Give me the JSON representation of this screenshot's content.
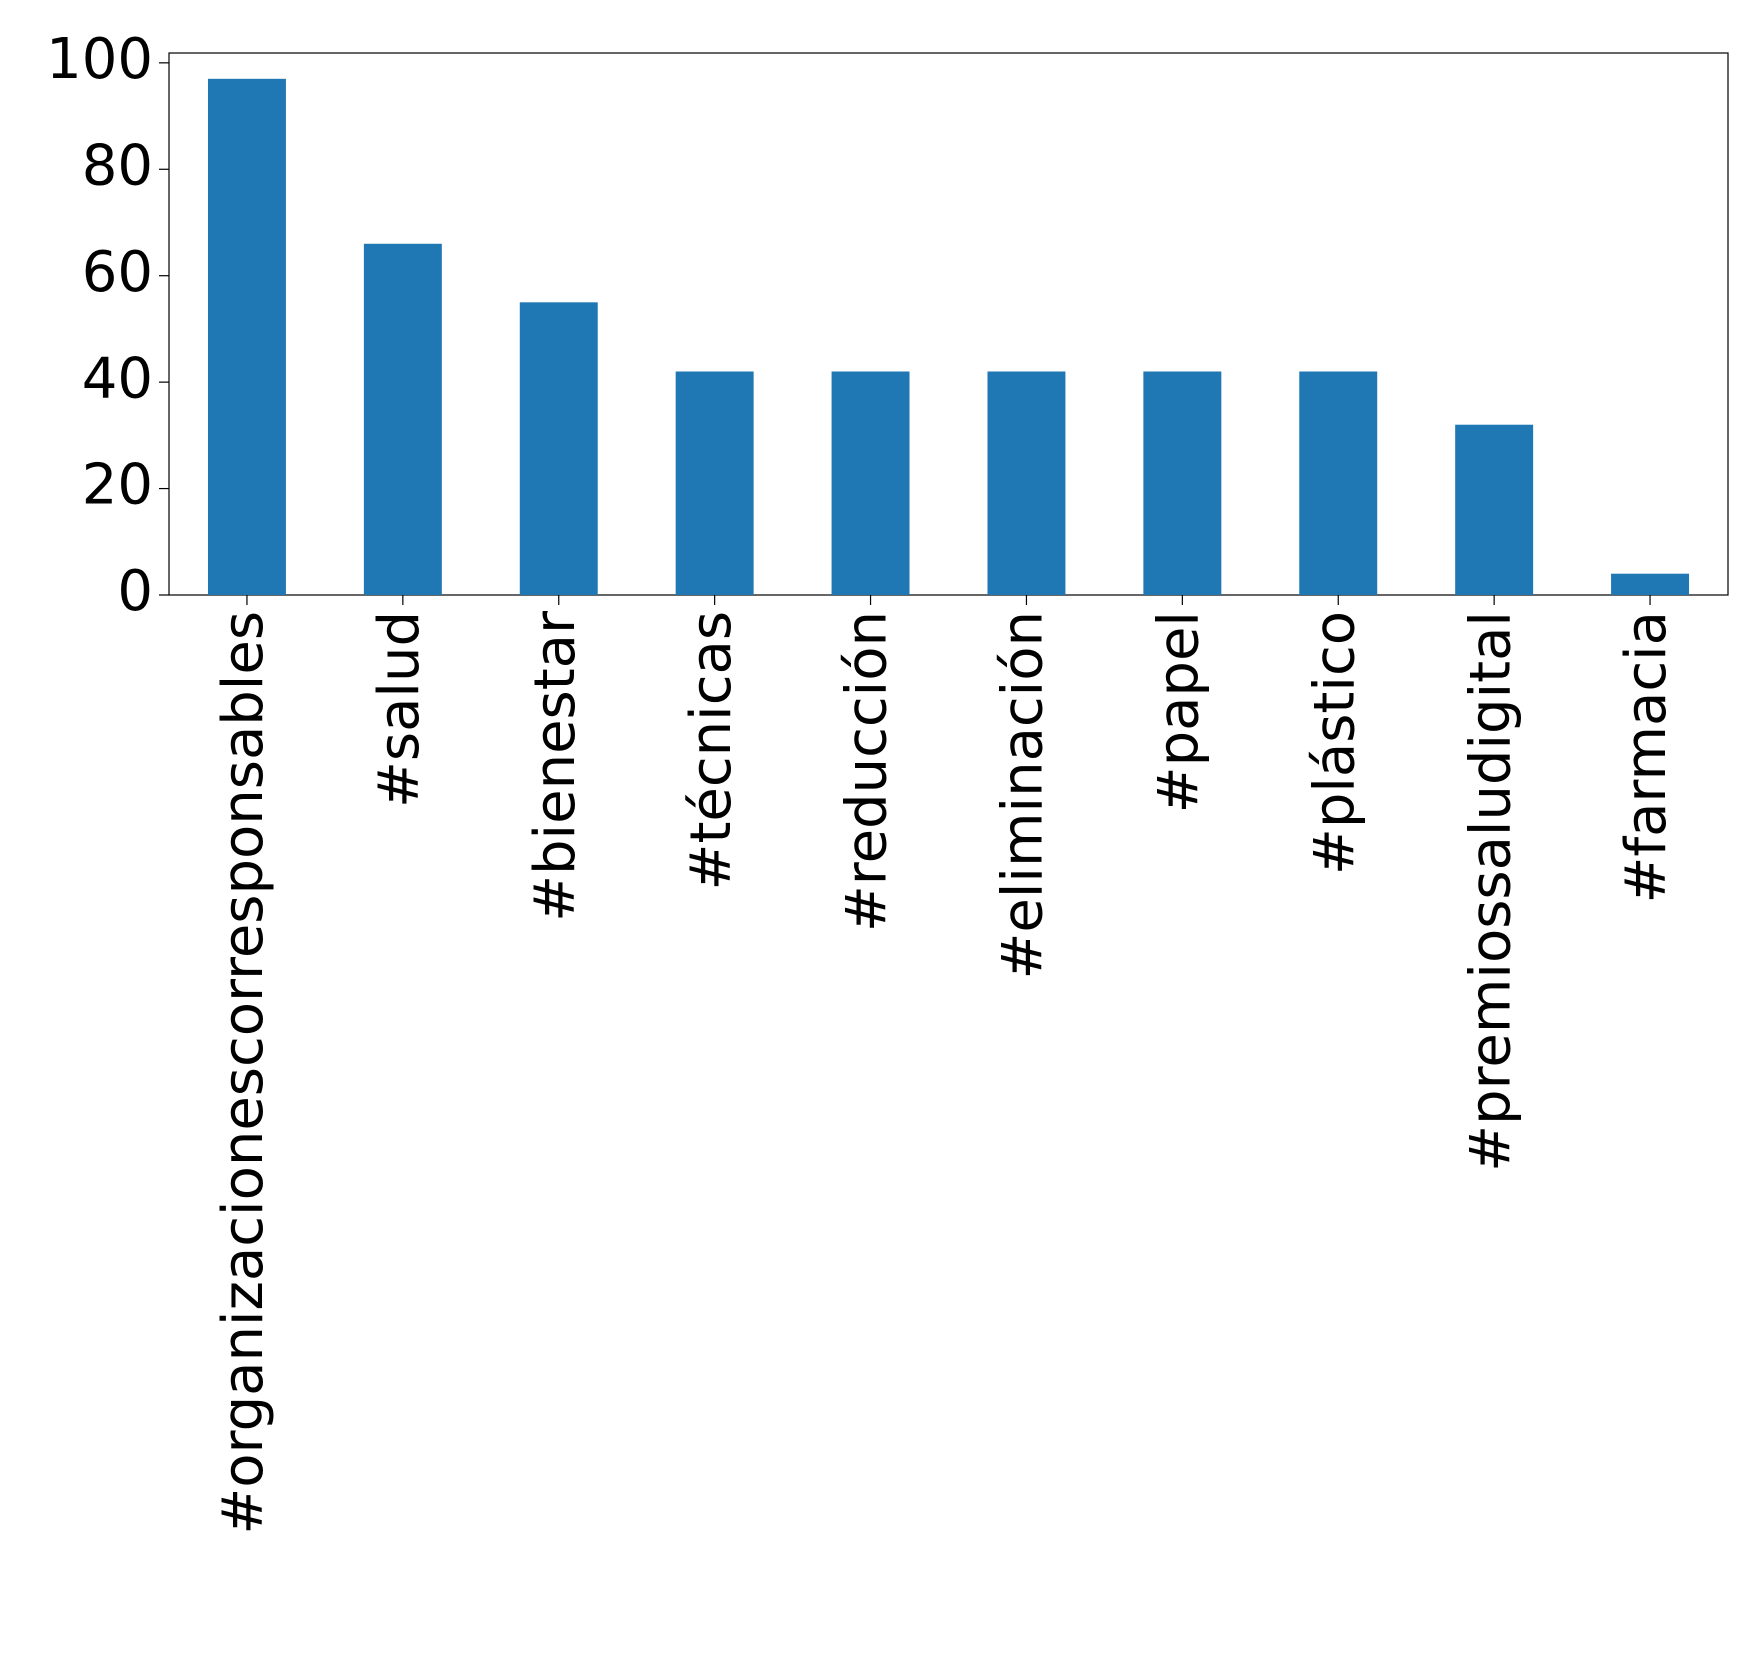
{
  "chart_data": {
    "type": "bar",
    "categories": [
      "#organizacionescorresponsables",
      "#salud",
      "#bienestar",
      "#técnicas",
      "#reducción",
      "#eliminación",
      "#papel",
      "#plástico",
      "#premiossaludigital",
      "#farmacia"
    ],
    "values": [
      97,
      66,
      55,
      42,
      42,
      42,
      42,
      42,
      32,
      4
    ],
    "color": "#1f77b4",
    "ylim": [
      0,
      101.85
    ],
    "yticks": [
      0,
      20,
      40,
      60,
      80,
      100
    ],
    "grid": false
  }
}
